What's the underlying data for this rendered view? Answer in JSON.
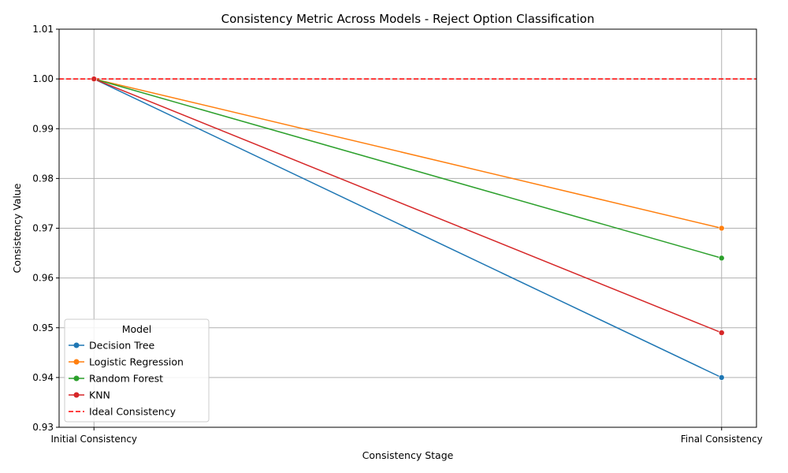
{
  "chart_data": {
    "type": "line",
    "title": "Consistency Metric Across Models - Reject Option Classification",
    "xlabel": "Consistency Stage",
    "ylabel": "Consistency Value",
    "categories": [
      "Initial Consistency",
      "Final Consistency"
    ],
    "ylim": [
      0.93,
      1.01
    ],
    "yticks": [
      "0.93",
      "0.94",
      "0.95",
      "0.96",
      "0.97",
      "0.98",
      "0.99",
      "1.00",
      "1.01"
    ],
    "grid": true,
    "series": [
      {
        "name": "Decision Tree",
        "values": [
          1.0,
          0.94
        ],
        "color": "#1f77b4"
      },
      {
        "name": "Logistic Regression",
        "values": [
          1.0,
          0.97
        ],
        "color": "#ff7f0e"
      },
      {
        "name": "Random Forest",
        "values": [
          1.0,
          0.964
        ],
        "color": "#2ca02c"
      },
      {
        "name": "KNN",
        "values": [
          1.0,
          0.949
        ],
        "color": "#d62728"
      }
    ],
    "reference_line": {
      "name": "Ideal Consistency",
      "value": 1.0,
      "color": "#ff0000",
      "style": "dashed"
    },
    "legend": {
      "title": "Model",
      "placement": "lower-left"
    }
  }
}
